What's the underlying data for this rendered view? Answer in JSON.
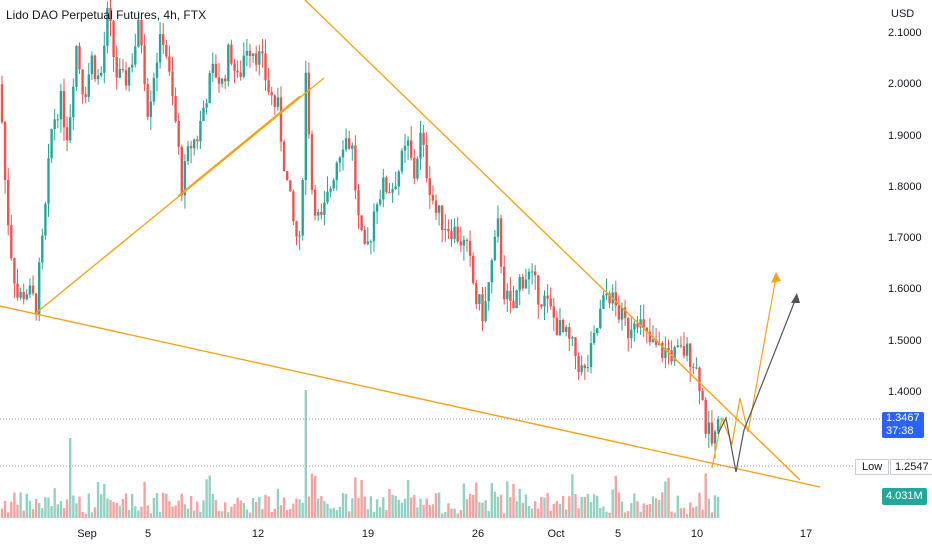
{
  "header": {
    "title": "Lido DAO Perpetual Futures, 4h, FTX"
  },
  "chart_data": {
    "type": "candlestick",
    "currency": "USD",
    "y_ticks": [
      "2.1000",
      "2.0000",
      "1.9000",
      "1.8000",
      "1.7000",
      "1.6000",
      "1.5000",
      "1.4000"
    ],
    "y_tick_values": [
      2.1,
      2.0,
      1.9,
      1.8,
      1.7,
      1.6,
      1.5,
      1.4
    ],
    "x_ticks": [
      "Sep",
      "5",
      "12",
      "19",
      "26",
      "Oct",
      "5",
      "10",
      "17"
    ],
    "ylim": [
      1.2,
      2.15
    ],
    "last_price": "1.3467",
    "countdown": "37:38",
    "low_label": "Low",
    "low_value": "1.2547",
    "volume_value": "4.031M",
    "colors": {
      "up": "#26a69a",
      "down": "#ef5350",
      "trend": "#f7a21b",
      "projection_dark": "#555555",
      "price_tag": "#2962ff",
      "volume_tag": "#26a69a"
    },
    "price_path": [
      [
        0,
        2.0
      ],
      [
        6,
        1.78
      ],
      [
        12,
        1.66
      ],
      [
        18,
        1.58
      ],
      [
        26,
        1.6
      ],
      [
        36,
        1.57
      ],
      [
        44,
        1.72
      ],
      [
        52,
        1.92
      ],
      [
        60,
        1.97
      ],
      [
        68,
        1.9
      ],
      [
        76,
        2.08
      ],
      [
        84,
        1.98
      ],
      [
        92,
        2.05
      ],
      [
        100,
        2.0
      ],
      [
        108,
        2.14
      ],
      [
        116,
        2.02
      ],
      [
        124,
        2.0
      ],
      [
        132,
        2.05
      ],
      [
        140,
        2.12
      ],
      [
        148,
        1.95
      ],
      [
        156,
        2.05
      ],
      [
        164,
        2.1
      ],
      [
        170,
        2.0
      ],
      [
        176,
        1.92
      ],
      [
        182,
        1.8
      ],
      [
        190,
        1.88
      ],
      [
        198,
        1.9
      ],
      [
        206,
        1.98
      ],
      [
        214,
        2.03
      ],
      [
        222,
        2.0
      ],
      [
        230,
        2.07
      ],
      [
        238,
        2.0
      ],
      [
        246,
        2.08
      ],
      [
        254,
        2.07
      ],
      [
        262,
        2.04
      ],
      [
        270,
        1.98
      ],
      [
        278,
        1.95
      ],
      [
        286,
        1.82
      ],
      [
        294,
        1.72
      ],
      [
        300,
        1.68
      ],
      [
        306,
        2.03
      ],
      [
        312,
        1.8
      ],
      [
        320,
        1.72
      ],
      [
        328,
        1.78
      ],
      [
        336,
        1.85
      ],
      [
        344,
        1.9
      ],
      [
        352,
        1.88
      ],
      [
        358,
        1.74
      ],
      [
        364,
        1.66
      ],
      [
        370,
        1.7
      ],
      [
        376,
        1.78
      ],
      [
        384,
        1.8
      ],
      [
        392,
        1.8
      ],
      [
        400,
        1.84
      ],
      [
        408,
        1.88
      ],
      [
        414,
        1.82
      ],
      [
        420,
        1.9
      ],
      [
        428,
        1.82
      ],
      [
        436,
        1.75
      ],
      [
        444,
        1.73
      ],
      [
        452,
        1.72
      ],
      [
        460,
        1.7
      ],
      [
        468,
        1.67
      ],
      [
        476,
        1.58
      ],
      [
        484,
        1.55
      ],
      [
        492,
        1.65
      ],
      [
        498,
        1.72
      ],
      [
        504,
        1.6
      ],
      [
        512,
        1.55
      ],
      [
        520,
        1.62
      ],
      [
        528,
        1.63
      ],
      [
        536,
        1.6
      ],
      [
        544,
        1.58
      ],
      [
        552,
        1.55
      ],
      [
        560,
        1.52
      ],
      [
        568,
        1.5
      ],
      [
        576,
        1.47
      ],
      [
        584,
        1.43
      ],
      [
        592,
        1.48
      ],
      [
        600,
        1.55
      ],
      [
        608,
        1.6
      ],
      [
        614,
        1.57
      ],
      [
        620,
        1.55
      ],
      [
        628,
        1.52
      ],
      [
        636,
        1.56
      ],
      [
        644,
        1.51
      ],
      [
        652,
        1.49
      ],
      [
        660,
        1.48
      ],
      [
        668,
        1.48
      ],
      [
        676,
        1.47
      ],
      [
        684,
        1.48
      ],
      [
        692,
        1.47
      ],
      [
        700,
        1.42
      ],
      [
        706,
        1.33
      ],
      [
        712,
        1.3
      ],
      [
        718,
        1.33
      ],
      [
        720,
        1.347
      ]
    ]
  }
}
